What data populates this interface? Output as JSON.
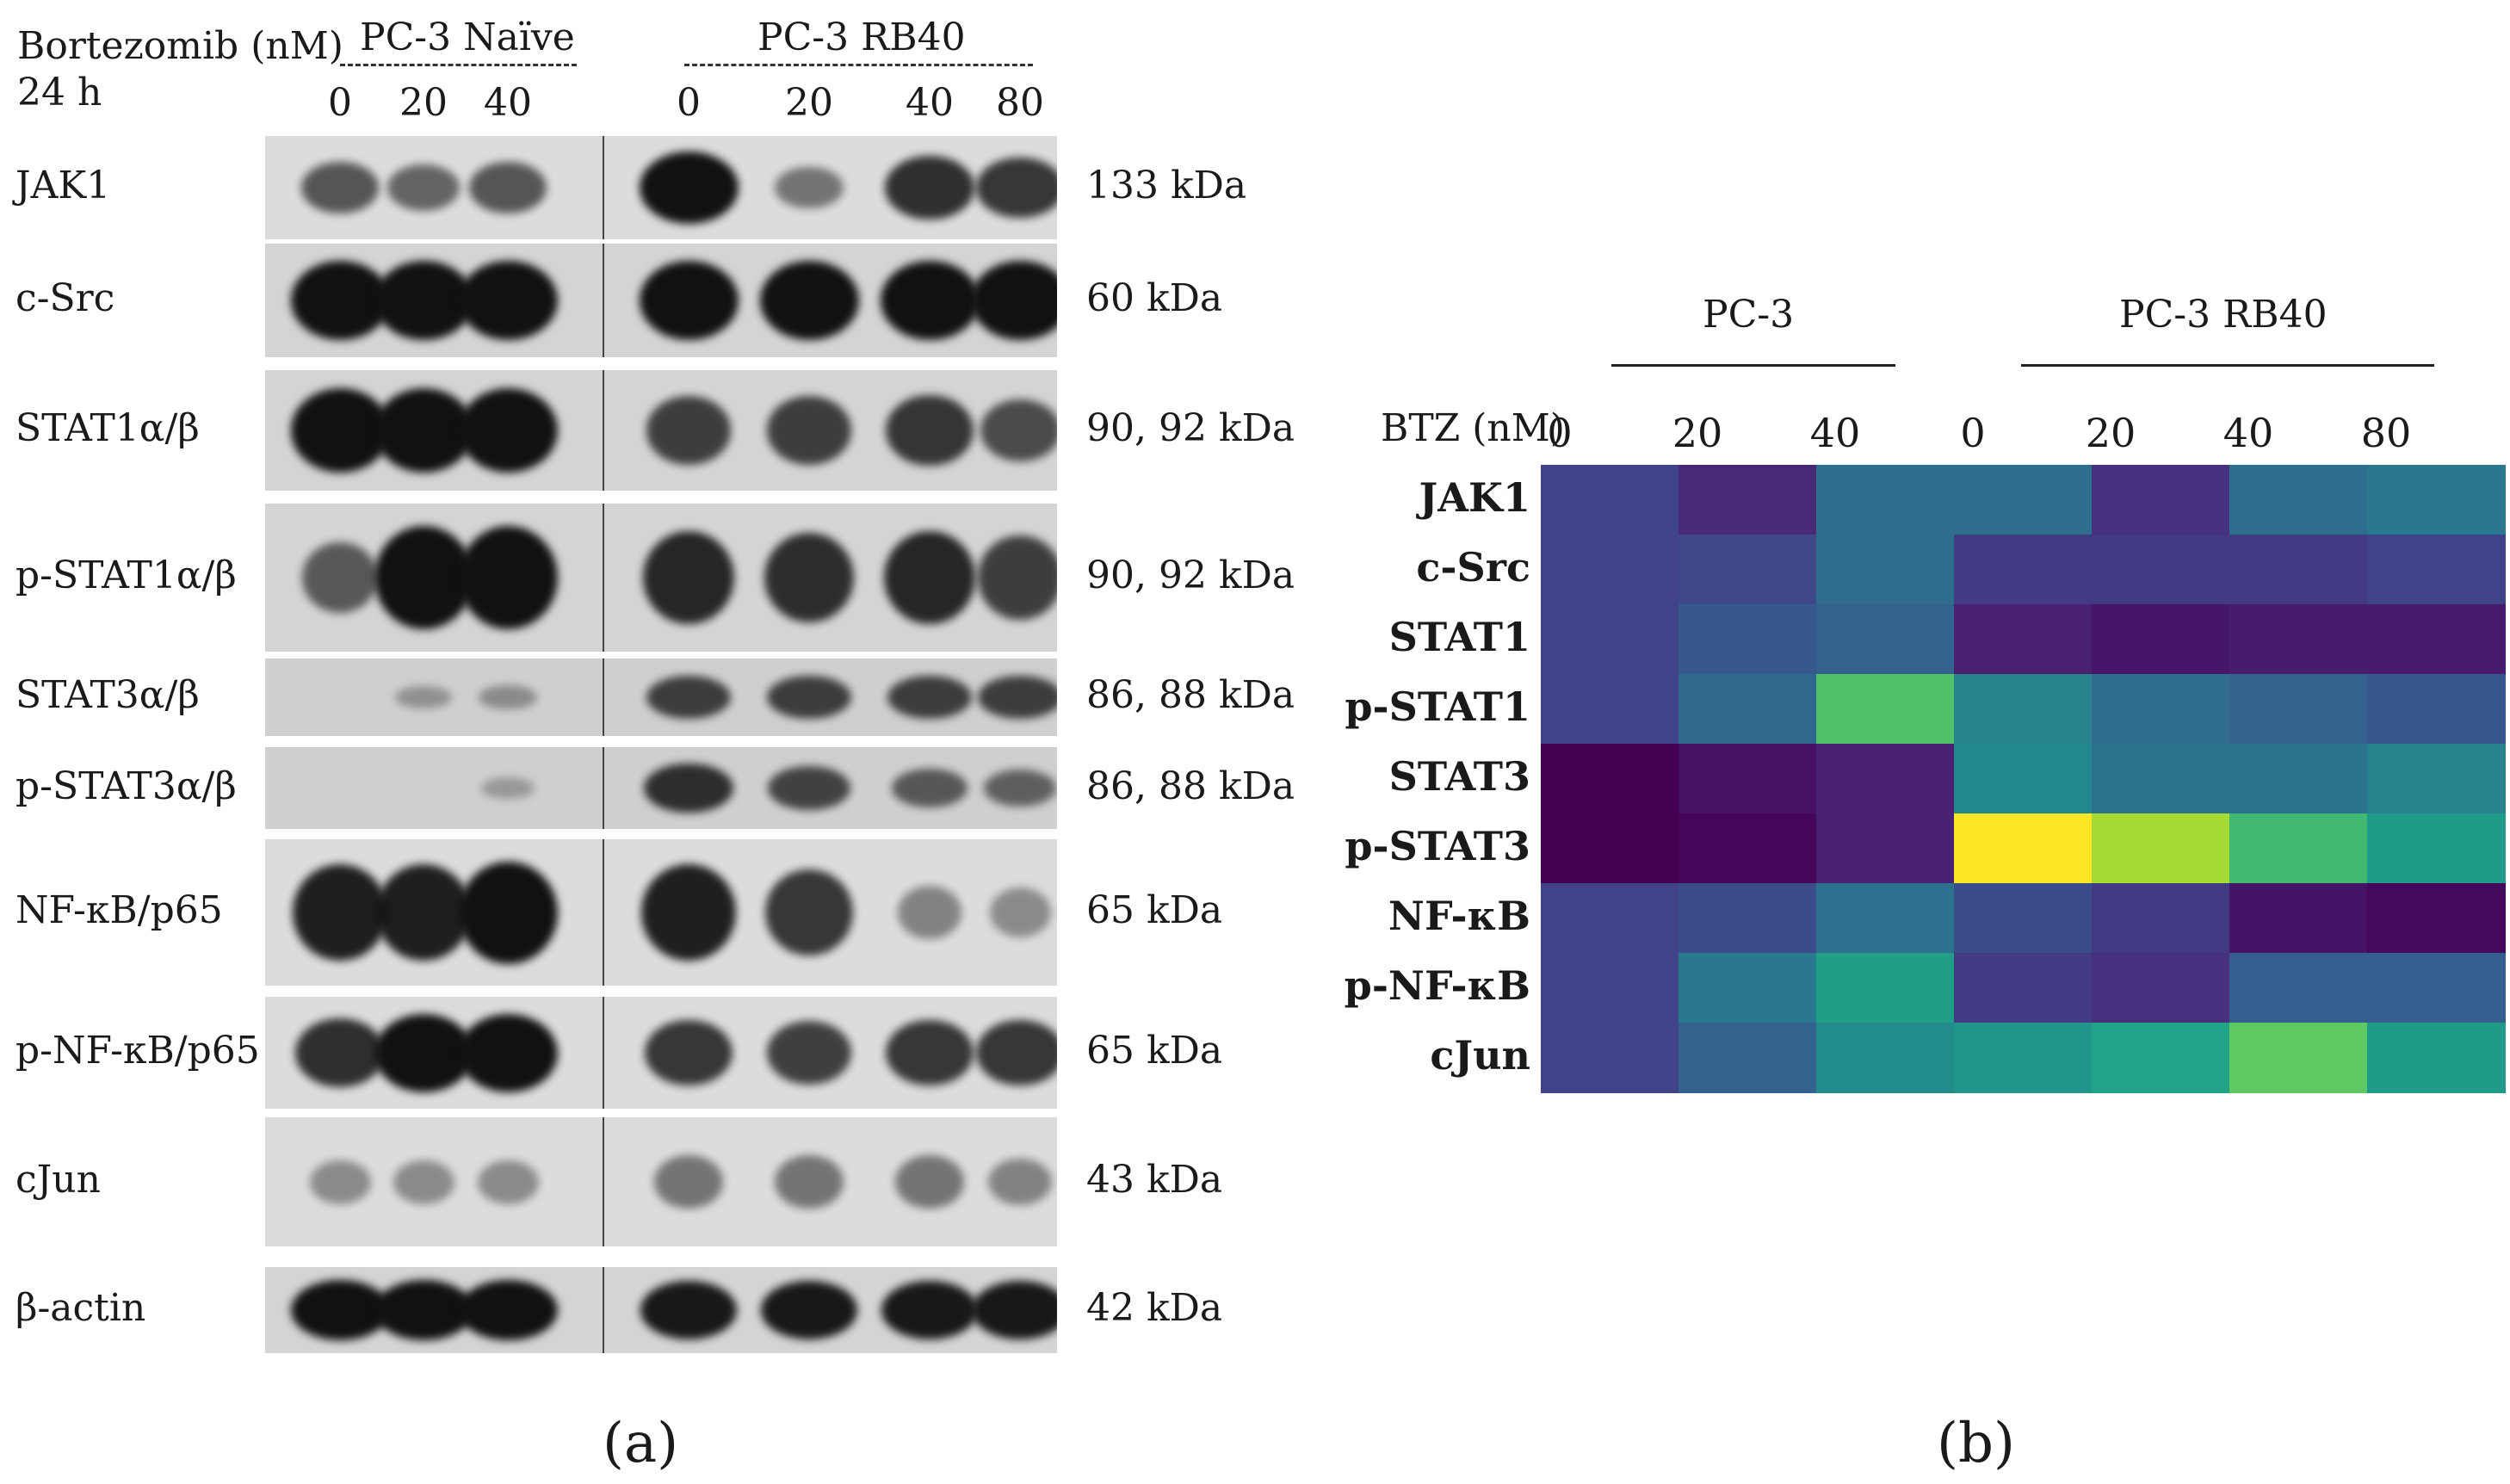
{
  "panel_a": {
    "treatment_label": "Bortezomib (nM)",
    "time_label": "24 h",
    "groups": [
      {
        "name": "PC-3 Naïve",
        "doses": [
          "0",
          "20",
          "40"
        ]
      },
      {
        "name": "PC-3 RB40",
        "doses": [
          "0",
          "20",
          "40",
          "80"
        ]
      }
    ],
    "rows": [
      {
        "protein": "JAK1",
        "size": "133 kDa",
        "lanes": [
          0.55,
          0.45,
          0.55,
          1.0,
          0.35,
          0.8,
          0.75
        ]
      },
      {
        "protein": "c-Src",
        "size": "60 kDa",
        "lanes": [
          1.0,
          1.0,
          1.0,
          1.0,
          1.0,
          1.0,
          1.0
        ]
      },
      {
        "protein": "STAT1α/β",
        "size": "90, 92 kDa",
        "lanes": [
          1.0,
          1.0,
          1.0,
          0.7,
          0.7,
          0.75,
          0.6
        ]
      },
      {
        "protein": "p-STAT1α/β",
        "size": "90, 92 kDa",
        "lanes": [
          0.5,
          1.0,
          1.0,
          0.85,
          0.8,
          0.85,
          0.7
        ]
      },
      {
        "protein": "STAT3α/β",
        "size": "86, 88 kDa",
        "lanes": [
          0.0,
          0.1,
          0.15,
          0.7,
          0.7,
          0.7,
          0.7
        ]
      },
      {
        "protein": "p-STAT3α/β",
        "size": "86, 88 kDa",
        "lanes": [
          0.0,
          0.0,
          0.05,
          0.8,
          0.65,
          0.5,
          0.45
        ]
      },
      {
        "protein": "NF-κB/p65",
        "size": "65 kDa",
        "lanes": [
          0.9,
          0.9,
          1.0,
          0.9,
          0.75,
          0.25,
          0.2
        ]
      },
      {
        "protein": "p-NF-κB/p65",
        "size": "65 kDa",
        "lanes": [
          0.8,
          1.0,
          1.0,
          0.75,
          0.7,
          0.75,
          0.75
        ]
      },
      {
        "protein": "cJun",
        "size": "43 kDa",
        "lanes": [
          0.2,
          0.2,
          0.2,
          0.35,
          0.35,
          0.35,
          0.25
        ]
      },
      {
        "protein": "β-actin",
        "size": "42 kDa",
        "lanes": [
          1.0,
          1.0,
          1.0,
          0.95,
          0.95,
          0.95,
          0.95
        ]
      }
    ],
    "caption": "(a)"
  },
  "chart_data": {
    "type": "heatmap",
    "xlabel": "BTZ (nM)",
    "groups": [
      {
        "name": "PC-3",
        "columns": [
          "0",
          "20",
          "40"
        ]
      },
      {
        "name": "PC-3 RB40",
        "columns": [
          "0",
          "20",
          "40",
          "80"
        ]
      }
    ],
    "columns": [
      "0",
      "20",
      "40",
      "0",
      "20",
      "40",
      "80"
    ],
    "rows": [
      "JAK1",
      "c-Src",
      "STAT1",
      "p-STAT1",
      "STAT3",
      "p-STAT3",
      "NF-κB",
      "p-NF-κB",
      "cJun"
    ],
    "colormap": "viridis",
    "values": [
      [
        0.25,
        0.15,
        0.45,
        0.45,
        0.18,
        0.45,
        0.5
      ],
      [
        0.25,
        0.27,
        0.45,
        0.22,
        0.22,
        0.22,
        0.25
      ],
      [
        0.25,
        0.35,
        0.4,
        0.12,
        0.08,
        0.1,
        0.1
      ],
      [
        0.25,
        0.42,
        0.85,
        0.55,
        0.45,
        0.4,
        0.35
      ],
      [
        0.0,
        0.06,
        0.12,
        0.58,
        0.48,
        0.48,
        0.55
      ],
      [
        0.0,
        0.02,
        0.12,
        1.0,
        0.93,
        0.82,
        0.68
      ],
      [
        0.25,
        0.3,
        0.47,
        0.3,
        0.22,
        0.07,
        0.03
      ],
      [
        0.25,
        0.5,
        0.7,
        0.22,
        0.18,
        0.38,
        0.38
      ],
      [
        0.25,
        0.4,
        0.6,
        0.65,
        0.72,
        0.88,
        0.68
      ]
    ],
    "caption": "(b)"
  }
}
